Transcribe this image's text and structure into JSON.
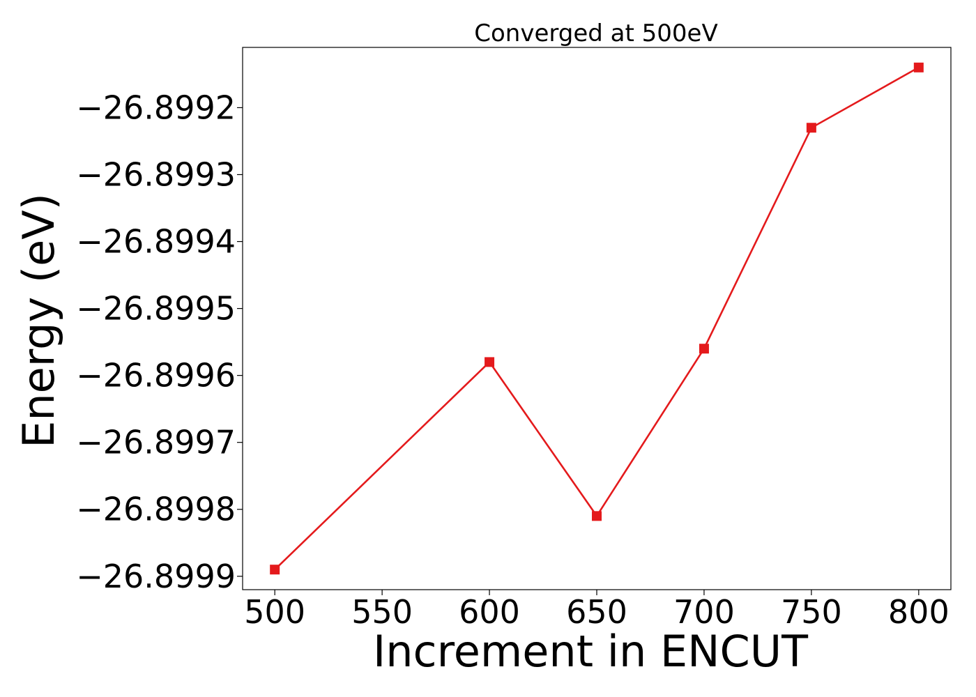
{
  "chart_data": {
    "type": "line",
    "title": "Converged at 500eV",
    "xlabel": "Increment in ENCUT",
    "ylabel": "Energy (eV)",
    "x": [
      500,
      600,
      650,
      700,
      750,
      800
    ],
    "series": [
      {
        "values": [
          -26.89989,
          -26.89958,
          -26.89981,
          -26.89956,
          -26.89923,
          -26.89914
        ],
        "color": "#e41a1c",
        "marker": "square"
      }
    ],
    "xticks": [
      500,
      550,
      600,
      650,
      700,
      750,
      800
    ],
    "xtick_labels": [
      "500",
      "550",
      "600",
      "650",
      "700",
      "750",
      "800"
    ],
    "yticks": [
      -26.8999,
      -26.8998,
      -26.8997,
      -26.8996,
      -26.8995,
      -26.8994,
      -26.8993,
      -26.8992
    ],
    "ytick_labels": [
      "−26.8999",
      "−26.8998",
      "−26.8997",
      "−26.8996",
      "−26.8995",
      "−26.8994",
      "−26.8993",
      "−26.8992"
    ],
    "xlim": [
      485,
      815
    ],
    "ylim": [
      -26.89992,
      -26.89911
    ],
    "grid": false,
    "legend": false
  }
}
